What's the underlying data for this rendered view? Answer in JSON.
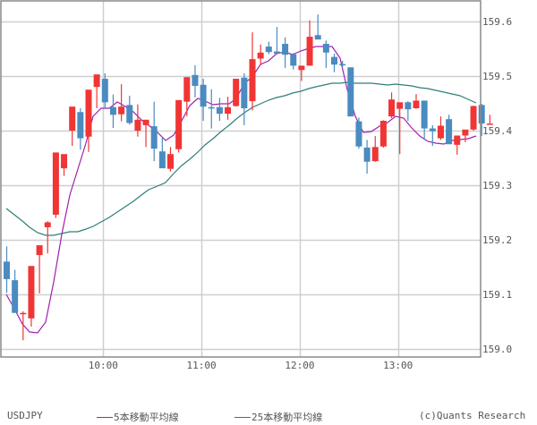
{
  "chart_data": {
    "type": "candlestick",
    "symbol": "USDJPY",
    "title": "",
    "xlabel": "",
    "ylabel": "",
    "ylim": [
      158.985,
      159.64
    ],
    "grid": true,
    "y_ticks": [
      "159.6",
      "159.5",
      "159.4",
      "159.3",
      "159.2",
      "159.1",
      "159.0"
    ],
    "y_tick_values": [
      159.6,
      159.5,
      159.4,
      159.3,
      159.2,
      159.1,
      159.0
    ],
    "x_ticks": [
      "10:00",
      "11:00",
      "12:00",
      "13:00"
    ],
    "x_tick_bar_index": [
      12,
      24,
      36,
      48
    ],
    "bar_interval": "5min",
    "up_color": "#f03535",
    "down_color": "#4a8bc0",
    "candles": [
      {
        "o": 159.16,
        "h": 159.188,
        "l": 159.103,
        "c": 159.128
      },
      {
        "o": 159.126,
        "h": 159.145,
        "l": 159.07,
        "c": 159.066
      },
      {
        "o": 159.064,
        "h": 159.069,
        "l": 159.016,
        "c": 159.066
      },
      {
        "o": 159.056,
        "h": 159.064,
        "l": 159.041,
        "c": 159.152
      },
      {
        "o": 159.172,
        "h": 159.177,
        "l": 159.102,
        "c": 159.19
      },
      {
        "o": 159.223,
        "h": 159.234,
        "l": 159.175,
        "c": 159.232
      },
      {
        "o": 159.246,
        "h": 159.252,
        "l": 159.24,
        "c": 159.36
      },
      {
        "o": 159.331,
        "h": 159.335,
        "l": 159.317,
        "c": 159.357
      },
      {
        "o": 159.4,
        "h": 159.41,
        "l": 159.372,
        "c": 159.444
      },
      {
        "o": 159.434,
        "h": 159.441,
        "l": 159.365,
        "c": 159.386
      },
      {
        "o": 159.389,
        "h": 159.401,
        "l": 159.361,
        "c": 159.475
      },
      {
        "o": 159.48,
        "h": 159.498,
        "l": 159.441,
        "c": 159.503
      },
      {
        "o": 159.495,
        "h": 159.505,
        "l": 159.441,
        "c": 159.452
      },
      {
        "o": 159.443,
        "h": 159.466,
        "l": 159.405,
        "c": 159.429
      },
      {
        "o": 159.43,
        "h": 159.485,
        "l": 159.417,
        "c": 159.444
      },
      {
        "o": 159.447,
        "h": 159.464,
        "l": 159.411,
        "c": 159.414
      },
      {
        "o": 159.4,
        "h": 159.448,
        "l": 159.389,
        "c": 159.42
      },
      {
        "o": 159.41,
        "h": 159.42,
        "l": 159.37,
        "c": 159.42
      },
      {
        "o": 159.408,
        "h": 159.453,
        "l": 159.344,
        "c": 159.367
      },
      {
        "o": 159.362,
        "h": 159.387,
        "l": 159.339,
        "c": 159.331
      },
      {
        "o": 159.33,
        "h": 159.37,
        "l": 159.325,
        "c": 159.357
      },
      {
        "o": 159.366,
        "h": 159.42,
        "l": 159.36,
        "c": 159.456
      },
      {
        "o": 159.453,
        "h": 159.487,
        "l": 159.426,
        "c": 159.498
      },
      {
        "o": 159.502,
        "h": 159.52,
        "l": 159.461,
        "c": 159.482
      },
      {
        "o": 159.484,
        "h": 159.495,
        "l": 159.418,
        "c": 159.444
      },
      {
        "o": 159.443,
        "h": 159.476,
        "l": 159.404,
        "c": 159.442
      },
      {
        "o": 159.443,
        "h": 159.46,
        "l": 159.418,
        "c": 159.431
      },
      {
        "o": 159.431,
        "h": 159.462,
        "l": 159.42,
        "c": 159.443
      },
      {
        "o": 159.445,
        "h": 159.458,
        "l": 159.444,
        "c": 159.495
      },
      {
        "o": 159.497,
        "h": 159.505,
        "l": 159.41,
        "c": 159.441
      },
      {
        "o": 159.454,
        "h": 159.58,
        "l": 159.437,
        "c": 159.531
      },
      {
        "o": 159.532,
        "h": 159.558,
        "l": 159.52,
        "c": 159.543
      },
      {
        "o": 159.554,
        "h": 159.563,
        "l": 159.54,
        "c": 159.544
      },
      {
        "o": 159.545,
        "h": 159.59,
        "l": 159.542,
        "c": 159.541
      },
      {
        "o": 159.559,
        "h": 159.571,
        "l": 159.515,
        "c": 159.539
      },
      {
        "o": 159.54,
        "h": 159.542,
        "l": 159.512,
        "c": 159.519
      },
      {
        "o": 159.511,
        "h": 159.511,
        "l": 159.491,
        "c": 159.519
      },
      {
        "o": 159.519,
        "h": 159.602,
        "l": 159.519,
        "c": 159.572
      },
      {
        "o": 159.575,
        "h": 159.613,
        "l": 159.567,
        "c": 159.567
      },
      {
        "o": 159.559,
        "h": 159.565,
        "l": 159.515,
        "c": 159.543
      },
      {
        "o": 159.535,
        "h": 159.541,
        "l": 159.507,
        "c": 159.521
      },
      {
        "o": 159.522,
        "h": 159.528,
        "l": 159.516,
        "c": 159.521
      },
      {
        "o": 159.516,
        "h": 159.516,
        "l": 159.43,
        "c": 159.426
      },
      {
        "o": 159.417,
        "h": 159.424,
        "l": 159.367,
        "c": 159.371
      },
      {
        "o": 159.369,
        "h": 159.383,
        "l": 159.321,
        "c": 159.343
      },
      {
        "o": 159.344,
        "h": 159.39,
        "l": 159.343,
        "c": 159.37
      },
      {
        "o": 159.371,
        "h": 159.419,
        "l": 159.369,
        "c": 159.418
      },
      {
        "o": 159.426,
        "h": 159.47,
        "l": 159.423,
        "c": 159.457
      },
      {
        "o": 159.44,
        "h": 159.443,
        "l": 159.357,
        "c": 159.452
      },
      {
        "o": 159.452,
        "h": 159.454,
        "l": 159.418,
        "c": 159.439
      },
      {
        "o": 159.441,
        "h": 159.467,
        "l": 159.44,
        "c": 159.455
      },
      {
        "o": 159.455,
        "h": 159.455,
        "l": 159.383,
        "c": 159.404
      },
      {
        "o": 159.404,
        "h": 159.41,
        "l": 159.372,
        "c": 159.399
      },
      {
        "o": 159.386,
        "h": 159.426,
        "l": 159.383,
        "c": 159.409
      },
      {
        "o": 159.421,
        "h": 159.429,
        "l": 159.383,
        "c": 159.375
      },
      {
        "o": 159.374,
        "h": 159.386,
        "l": 159.356,
        "c": 159.391
      },
      {
        "o": 159.391,
        "h": 159.4,
        "l": 159.379,
        "c": 159.402
      },
      {
        "o": 159.402,
        "h": 159.446,
        "l": 159.4,
        "c": 159.445
      },
      {
        "o": 159.447,
        "h": 159.449,
        "l": 159.39,
        "c": 159.413
      },
      {
        "o": 159.413,
        "h": 159.429,
        "l": 159.411,
        "c": 159.413
      }
    ],
    "series": [
      {
        "name": "5本移動平均線",
        "color": "#a020b0",
        "points": [
          [
            7,
            329
          ],
          [
            16,
            345
          ],
          [
            25,
            362
          ],
          [
            33,
            371
          ],
          [
            42,
            372
          ],
          [
            51,
            360
          ],
          [
            60,
            315
          ],
          [
            69,
            262
          ],
          [
            78,
            218
          ],
          [
            87,
            189
          ],
          [
            96,
            160
          ],
          [
            104,
            130
          ],
          [
            113,
            121
          ],
          [
            122,
            121
          ],
          [
            131,
            114
          ],
          [
            140,
            119
          ],
          [
            149,
            125
          ],
          [
            158,
            134
          ],
          [
            166,
            140
          ],
          [
            176,
            148
          ],
          [
            185,
            157
          ],
          [
            194,
            151
          ],
          [
            203,
            135
          ],
          [
            212,
            118
          ],
          [
            221,
            110
          ],
          [
            229,
            113
          ],
          [
            238,
            117
          ],
          [
            247,
            116
          ],
          [
            256,
            116
          ],
          [
            264,
            110
          ],
          [
            273,
            93
          ],
          [
            282,
            86
          ],
          [
            291,
            72
          ],
          [
            300,
            68
          ],
          [
            309,
            60
          ],
          [
            318,
            58
          ],
          [
            327,
            61
          ],
          [
            336,
            57
          ],
          [
            345,
            54
          ],
          [
            353,
            52
          ],
          [
            362,
            52
          ],
          [
            371,
            52
          ],
          [
            380,
            65
          ],
          [
            388,
            100
          ],
          [
            397,
            130
          ],
          [
            406,
            148
          ],
          [
            415,
            147
          ],
          [
            424,
            141
          ],
          [
            433,
            137
          ],
          [
            442,
            130
          ],
          [
            451,
            132
          ],
          [
            460,
            143
          ],
          [
            469,
            152
          ],
          [
            478,
            158
          ],
          [
            487,
            160
          ],
          [
            496,
            161
          ],
          [
            505,
            157
          ],
          [
            514,
            156
          ],
          [
            523,
            155
          ],
          [
            532,
            152
          ]
        ]
      },
      {
        "name": "25本移動平均線",
        "color": "#2e7f78",
        "points": [
          [
            7,
            233
          ],
          [
            16,
            240
          ],
          [
            25,
            247
          ],
          [
            33,
            254
          ],
          [
            42,
            260
          ],
          [
            51,
            263
          ],
          [
            60,
            263
          ],
          [
            69,
            261
          ],
          [
            78,
            259
          ],
          [
            87,
            259
          ],
          [
            96,
            256
          ],
          [
            104,
            253
          ],
          [
            113,
            248
          ],
          [
            122,
            243
          ],
          [
            131,
            237
          ],
          [
            140,
            231
          ],
          [
            149,
            225
          ],
          [
            158,
            218
          ],
          [
            166,
            212
          ],
          [
            176,
            208
          ],
          [
            185,
            204
          ],
          [
            194,
            194
          ],
          [
            203,
            185
          ],
          [
            212,
            178
          ],
          [
            221,
            170
          ],
          [
            229,
            162
          ],
          [
            238,
            155
          ],
          [
            247,
            147
          ],
          [
            256,
            140
          ],
          [
            264,
            133
          ],
          [
            273,
            126
          ],
          [
            282,
            120
          ],
          [
            291,
            116
          ],
          [
            300,
            112
          ],
          [
            309,
            109
          ],
          [
            318,
            107
          ],
          [
            327,
            104
          ],
          [
            336,
            102
          ],
          [
            345,
            99
          ],
          [
            353,
            97
          ],
          [
            362,
            95
          ],
          [
            371,
            93
          ],
          [
            380,
            93
          ],
          [
            388,
            92
          ],
          [
            397,
            93
          ],
          [
            406,
            93
          ],
          [
            415,
            93
          ],
          [
            424,
            94
          ],
          [
            433,
            95
          ],
          [
            442,
            94
          ],
          [
            451,
            95
          ],
          [
            460,
            96
          ],
          [
            469,
            98
          ],
          [
            478,
            99
          ],
          [
            487,
            101
          ],
          [
            496,
            103
          ],
          [
            505,
            105
          ],
          [
            514,
            107
          ],
          [
            523,
            111
          ],
          [
            532,
            115
          ]
        ]
      }
    ],
    "legend": [
      {
        "label": "5本移動平均線",
        "color": "#a020b0"
      },
      {
        "label": "25本移動平均線",
        "color": "#2e7f78"
      }
    ],
    "legend_position": "bottom"
  },
  "footer": {
    "symbol_label": "USDJPY",
    "ma5_label": "5本移動平均線",
    "ma25_label": "25本移動平均線",
    "credit": "(c)Quants Research"
  }
}
